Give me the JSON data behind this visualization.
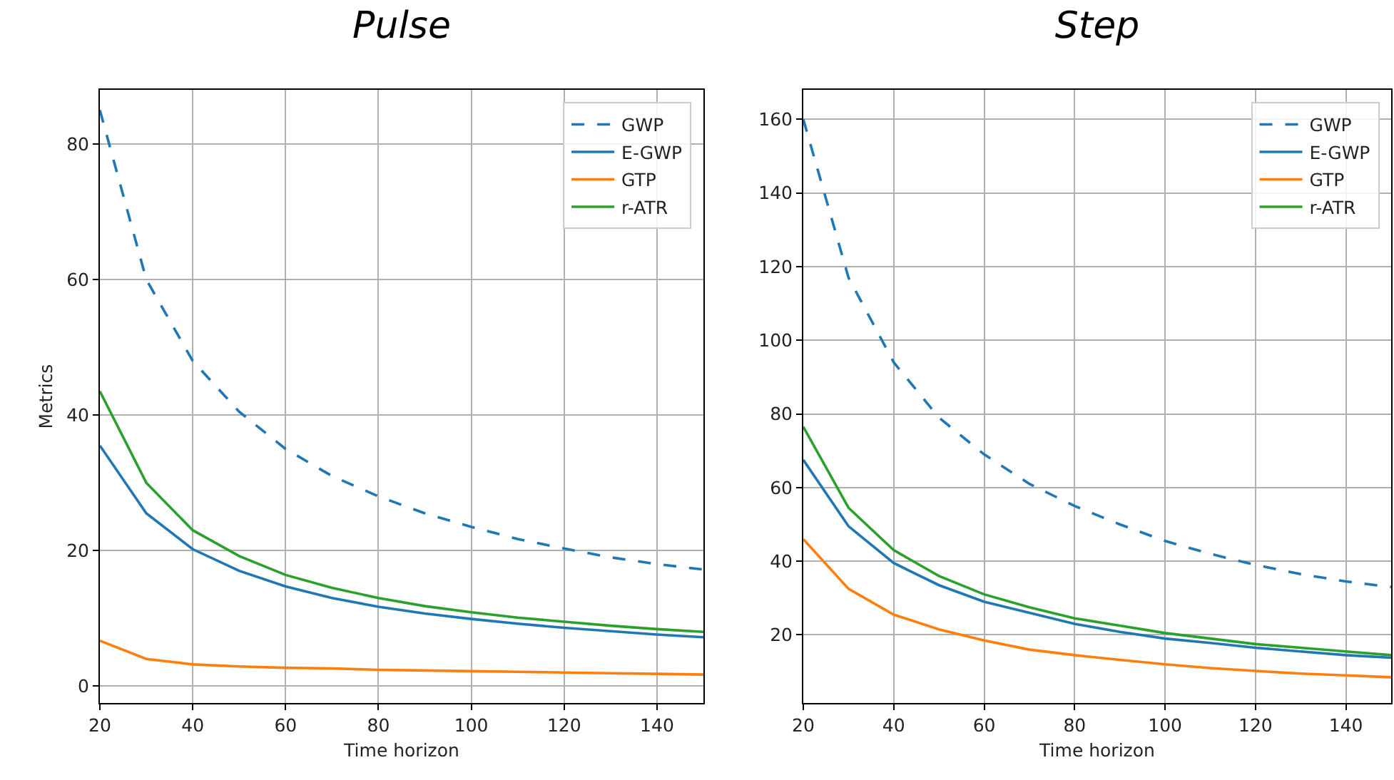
{
  "chart_data": [
    {
      "type": "line",
      "title": "Pulse",
      "xlabel": "Time horizon",
      "ylabel": "Metrics",
      "x": [
        20,
        30,
        40,
        50,
        60,
        70,
        80,
        90,
        100,
        110,
        120,
        130,
        140,
        150
      ],
      "xlim": [
        20,
        150
      ],
      "xticks": [
        20,
        40,
        60,
        80,
        100,
        120,
        140
      ],
      "ylim": [
        -2.5,
        88
      ],
      "yticks": [
        0,
        20,
        40,
        60,
        80
      ],
      "grid": true,
      "legend": "top right",
      "series": [
        {
          "name": "GWP",
          "color": "#1f77b4",
          "line_style": "dashed",
          "values": [
            85,
            60,
            48,
            40.5,
            35,
            31,
            28,
            25.5,
            23.5,
            21.7,
            20.3,
            19,
            18,
            17.2
          ]
        },
        {
          "name": "E-GWP",
          "color": "#1f77b4",
          "values": [
            35.5,
            25.5,
            20.2,
            17,
            14.7,
            13,
            11.7,
            10.7,
            9.9,
            9.2,
            8.6,
            8.1,
            7.6,
            7.2
          ]
        },
        {
          "name": "GTP",
          "color": "#ff7f0e",
          "values": [
            6.7,
            4,
            3.2,
            2.9,
            2.7,
            2.6,
            2.4,
            2.3,
            2.2,
            2.1,
            2,
            1.9,
            1.8,
            1.7
          ]
        },
        {
          "name": "r-ATR",
          "color": "#2ca02c",
          "values": [
            43.5,
            30,
            23,
            19.2,
            16.4,
            14.5,
            13,
            11.8,
            10.9,
            10.1,
            9.5,
            8.9,
            8.4,
            8
          ]
        }
      ]
    },
    {
      "type": "line",
      "title": "Step",
      "xlabel": "Time horizon",
      "x": [
        20,
        30,
        40,
        50,
        60,
        70,
        80,
        90,
        100,
        110,
        120,
        130,
        140,
        150
      ],
      "xlim": [
        20,
        150
      ],
      "xticks": [
        20,
        40,
        60,
        80,
        100,
        120,
        140
      ],
      "ylim": [
        1.5,
        168
      ],
      "yticks": [
        20,
        40,
        60,
        80,
        100,
        120,
        140,
        160
      ],
      "grid": true,
      "legend": "top right",
      "series": [
        {
          "name": "GWP",
          "color": "#1f77b4",
          "line_style": "dashed",
          "values": [
            160,
            117,
            94,
            79,
            69,
            61,
            55,
            50,
            45.5,
            42,
            39,
            36.5,
            34.5,
            33
          ]
        },
        {
          "name": "E-GWP",
          "color": "#1f77b4",
          "values": [
            67.5,
            49.5,
            39.5,
            33.5,
            29,
            26,
            23,
            20.8,
            19,
            17.8,
            16.5,
            15.5,
            14.5,
            13.8
          ]
        },
        {
          "name": "GTP",
          "color": "#ff7f0e",
          "values": [
            46,
            32.5,
            25.5,
            21.5,
            18.5,
            16,
            14.5,
            13.2,
            12,
            11,
            10.2,
            9.5,
            9,
            8.5
          ]
        },
        {
          "name": "r-ATR",
          "color": "#2ca02c",
          "values": [
            76.5,
            54.5,
            43,
            36,
            31,
            27.5,
            24.5,
            22.5,
            20.5,
            19,
            17.5,
            16.5,
            15.5,
            14.5
          ]
        }
      ]
    }
  ]
}
